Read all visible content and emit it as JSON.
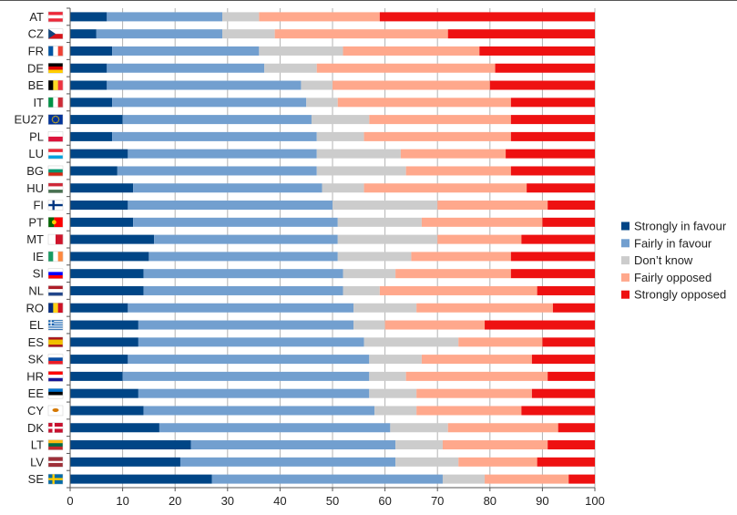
{
  "chart_data": {
    "type": "bar",
    "orientation": "horizontal",
    "stacked": true,
    "title": "",
    "xlabel": "",
    "ylabel": "",
    "xlim": [
      0,
      100
    ],
    "xticks": [
      0,
      10,
      20,
      30,
      40,
      50,
      60,
      70,
      80,
      90,
      100
    ],
    "grid": "vertical",
    "legend_position": "right",
    "categories": [
      "AT",
      "CZ",
      "FR",
      "DE",
      "BE",
      "IT",
      "EU27",
      "PL",
      "LU",
      "BG",
      "HU",
      "FI",
      "PT",
      "MT",
      "IE",
      "SI",
      "NL",
      "RO",
      "EL",
      "ES",
      "SK",
      "HR",
      "EE",
      "CY",
      "DK",
      "LT",
      "LV",
      "SE"
    ],
    "flags": [
      {
        "type": "h",
        "colors": [
          "#ed2939",
          "#ffffff",
          "#ed2939"
        ]
      },
      {
        "type": "cz",
        "colors": [
          "#ffffff",
          "#d7141a",
          "#11457e"
        ]
      },
      {
        "type": "v",
        "colors": [
          "#0055a4",
          "#ffffff",
          "#ef4135"
        ]
      },
      {
        "type": "h",
        "colors": [
          "#000000",
          "#dd0000",
          "#ffce00"
        ]
      },
      {
        "type": "v",
        "colors": [
          "#000000",
          "#fdda24",
          "#ef3340"
        ]
      },
      {
        "type": "v",
        "colors": [
          "#009246",
          "#ffffff",
          "#ce2b37"
        ]
      },
      {
        "type": "eu",
        "colors": [
          "#003399",
          "#ffcc00"
        ]
      },
      {
        "type": "h",
        "colors": [
          "#ffffff",
          "#dc143c"
        ]
      },
      {
        "type": "h",
        "colors": [
          "#ed2939",
          "#ffffff",
          "#00a1de"
        ]
      },
      {
        "type": "h",
        "colors": [
          "#ffffff",
          "#00966e",
          "#d62612"
        ]
      },
      {
        "type": "h",
        "colors": [
          "#ce2939",
          "#ffffff",
          "#477050"
        ]
      },
      {
        "type": "fi",
        "colors": [
          "#ffffff",
          "#003580"
        ]
      },
      {
        "type": "pt",
        "colors": [
          "#006600",
          "#ff0000"
        ]
      },
      {
        "type": "v",
        "colors": [
          "#ffffff",
          "#cf142b"
        ]
      },
      {
        "type": "v",
        "colors": [
          "#169b62",
          "#ffffff",
          "#ff883e"
        ]
      },
      {
        "type": "h",
        "colors": [
          "#ffffff",
          "#0000ff",
          "#ff0000"
        ]
      },
      {
        "type": "h",
        "colors": [
          "#ae1c28",
          "#ffffff",
          "#21468b"
        ]
      },
      {
        "type": "v",
        "colors": [
          "#002b7f",
          "#fcd116",
          "#ce1126"
        ]
      },
      {
        "type": "gr",
        "colors": [
          "#0d5eaf",
          "#ffffff"
        ]
      },
      {
        "type": "es",
        "colors": [
          "#aa151b",
          "#f1bf00"
        ]
      },
      {
        "type": "h",
        "colors": [
          "#ffffff",
          "#0b4ea2",
          "#ee1c25"
        ]
      },
      {
        "type": "h",
        "colors": [
          "#ff0000",
          "#ffffff",
          "#171796"
        ]
      },
      {
        "type": "h",
        "colors": [
          "#0072ce",
          "#000000",
          "#ffffff"
        ]
      },
      {
        "type": "cy",
        "colors": [
          "#ffffff",
          "#d57800"
        ]
      },
      {
        "type": "nordic",
        "colors": [
          "#c8102e",
          "#ffffff"
        ]
      },
      {
        "type": "h",
        "colors": [
          "#fdb913",
          "#006a44",
          "#c1272d"
        ]
      },
      {
        "type": "lv",
        "colors": [
          "#9e3039",
          "#ffffff"
        ]
      },
      {
        "type": "nordic",
        "colors": [
          "#006aa7",
          "#fecc00"
        ]
      }
    ],
    "series": [
      {
        "name": "Strongly in favour",
        "color": "#004586",
        "values": [
          7,
          5,
          8,
          7,
          7,
          8,
          10,
          8,
          11,
          9,
          12,
          11,
          12,
          16,
          15,
          14,
          14,
          11,
          13,
          13,
          11,
          10,
          13,
          14,
          17,
          23,
          21,
          27
        ]
      },
      {
        "name": "Fairly in favour",
        "color": "#729fcf",
        "values": [
          22,
          24,
          28,
          30,
          37,
          37,
          36,
          39,
          36,
          38,
          36,
          39,
          39,
          35,
          36,
          38,
          38,
          43,
          41,
          43,
          46,
          47,
          44,
          44,
          44,
          39,
          41,
          44
        ]
      },
      {
        "name": "Don’t know",
        "color": "#cccccc",
        "values": [
          7,
          10,
          16,
          10,
          6,
          6,
          11,
          9,
          16,
          17,
          8,
          20,
          16,
          19,
          14,
          10,
          7,
          12,
          6,
          18,
          10,
          7,
          9,
          8,
          11,
          9,
          12,
          8
        ]
      },
      {
        "name": "Fairly opposed",
        "color": "#ffa88c",
        "values": [
          23,
          33,
          26,
          34,
          30,
          33,
          27,
          28,
          20,
          20,
          31,
          21,
          23,
          16,
          19,
          22,
          30,
          26,
          19,
          16,
          21,
          27,
          22,
          20,
          21,
          20,
          15,
          16
        ]
      },
      {
        "name": "Strongly opposed",
        "color": "#ee1111",
        "values": [
          41,
          28,
          22,
          19,
          20,
          16,
          16,
          16,
          17,
          16,
          13,
          9,
          10,
          14,
          16,
          16,
          11,
          8,
          21,
          10,
          12,
          9,
          12,
          14,
          7,
          9,
          11,
          5
        ]
      }
    ]
  }
}
